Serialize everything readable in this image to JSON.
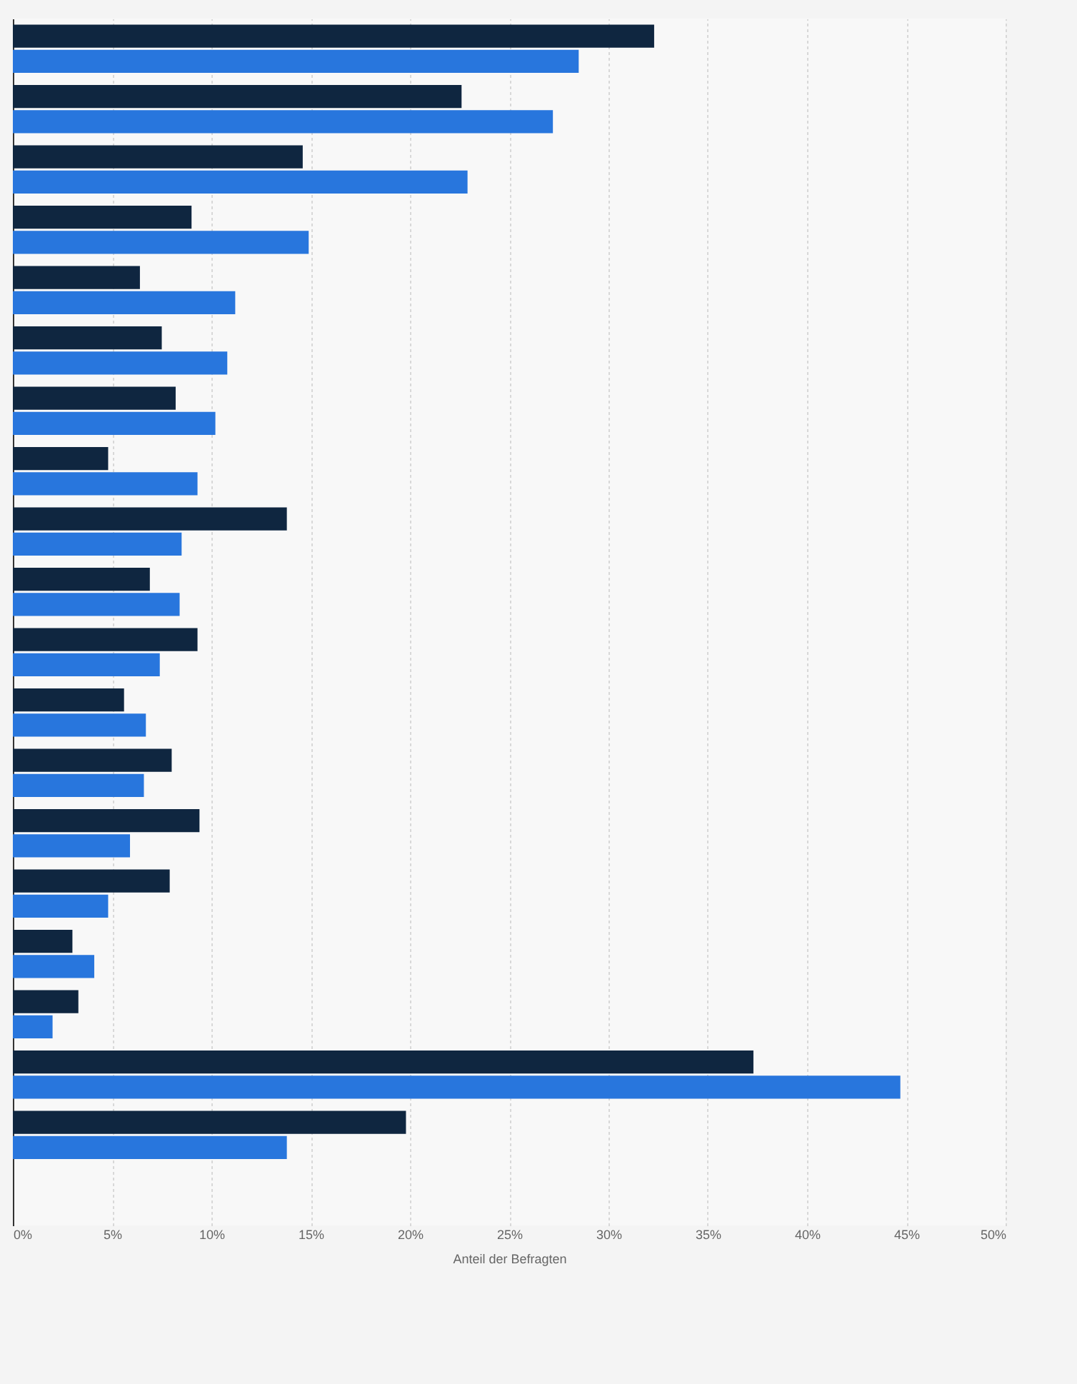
{
  "chart_data": {
    "type": "bar",
    "orientation": "horizontal",
    "xlabel": "Anteil der Befragten",
    "categories": [
      null,
      null,
      null,
      null,
      null,
      null,
      null,
      null,
      null,
      null,
      null,
      null,
      null,
      null,
      null,
      null,
      null,
      null,
      null,
      null
    ],
    "series": [
      {
        "color": "#0f2640",
        "values": [
          32.3,
          22.6,
          14.6,
          9.0,
          6.4,
          7.5,
          8.2,
          4.8,
          13.8,
          6.9,
          9.3,
          5.6,
          8.0,
          9.4,
          7.9,
          3.0,
          3.3,
          37.3,
          19.8,
          null
        ]
      },
      {
        "color": "#2876dd",
        "values": [
          28.5,
          27.2,
          22.9,
          14.9,
          11.2,
          10.8,
          10.2,
          9.3,
          8.5,
          8.4,
          7.4,
          6.7,
          6.6,
          5.9,
          4.8,
          4.1,
          2.0,
          44.7,
          13.8,
          null
        ]
      }
    ],
    "xlim": [
      0,
      50
    ],
    "xticks": [
      {
        "value": 0,
        "label": "0%"
      },
      {
        "value": 5,
        "label": "5%"
      },
      {
        "value": 10,
        "label": "10%"
      },
      {
        "value": 15,
        "label": "15%"
      },
      {
        "value": 20,
        "label": "20%"
      },
      {
        "value": 25,
        "label": "25%"
      },
      {
        "value": 30,
        "label": "30%"
      },
      {
        "value": 35,
        "label": "35%"
      },
      {
        "value": 40,
        "label": "40%"
      },
      {
        "value": 45,
        "label": "45%"
      },
      {
        "value": 50,
        "label": "50%"
      }
    ],
    "grid": "x",
    "tick_labels": "x",
    "legend": false
  }
}
